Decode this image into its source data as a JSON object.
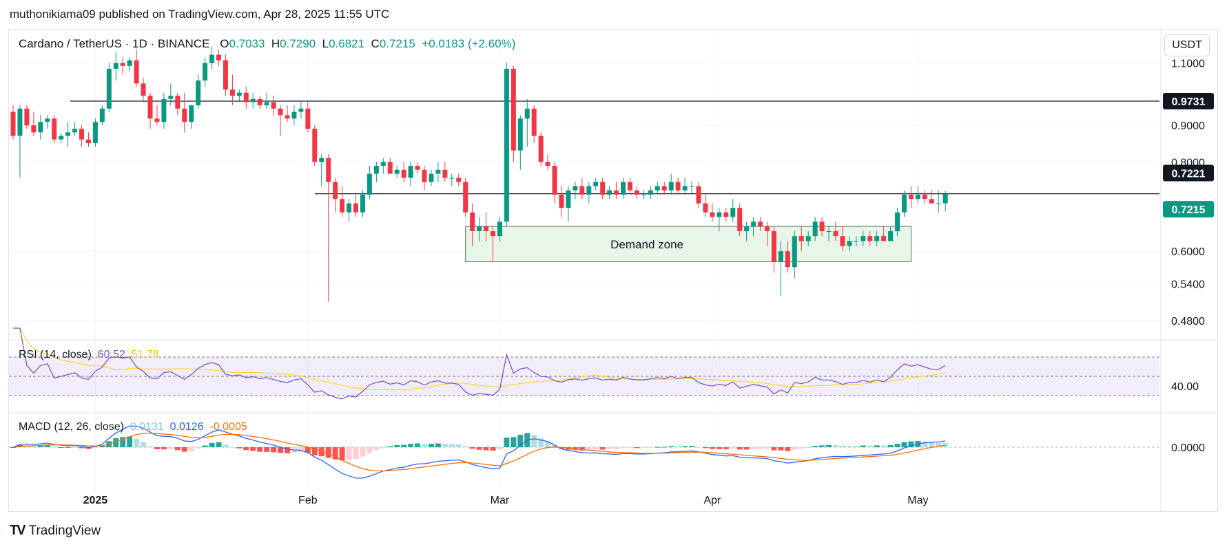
{
  "header": {
    "published_by": "muthonikiama09 published on TradingView.com, Apr 28, 2025 11:55 UTC"
  },
  "symbol": {
    "title": "Cardano / TetherUS · 1D · BINANCE",
    "o_label": "O",
    "o_value": "0.7033",
    "h_label": "H",
    "h_value": "0.7290",
    "l_label": "L",
    "l_value": "0.6821",
    "c_label": "C",
    "c_value": "0.7215",
    "change": "+0.0183 (+2.60%)"
  },
  "currency_button": "USDT",
  "price_labels": {
    "resistance": "0.9731",
    "support": "0.7221",
    "last": "0.7215"
  },
  "zone_label": "Demand zone",
  "rsi": {
    "title": "RSI (14, close)",
    "value": "60.52",
    "ma": "51.78",
    "tick": "40.00"
  },
  "macd": {
    "title": "MACD (12, 26, close)",
    "hist": "0.0131",
    "macd": "0.0126",
    "signal": "-0.0005",
    "tick": "0.0000"
  },
  "brand": "TradingView",
  "colors": {
    "up": "#089981",
    "down": "#f23645",
    "rsi": "#7e57c2",
    "rsi_ma": "#fdd835",
    "macd": "#2962ff",
    "signal": "#ff6d00",
    "zone_fill": "#e8f5e9"
  },
  "chart_data": {
    "type": "candlestick",
    "x_tick_labels": [
      "2025",
      "Feb",
      "Mar",
      "Apr",
      "May"
    ],
    "y_tick_labels": [
      "1.1000",
      "0.9000",
      "0.8000",
      "0.6000",
      "0.5400",
      "0.4800"
    ],
    "y_scale": "log",
    "horizontal_lines": [
      0.9731,
      0.7221
    ],
    "demand_zone": {
      "from": 0.58,
      "to": 0.65,
      "start": "2025-02-24",
      "end": "2025-04-30"
    },
    "start_date": "2024-12-20",
    "candles": [
      [
        0.94,
        0.96,
        0.86,
        0.87
      ],
      [
        0.87,
        0.96,
        0.76,
        0.95
      ],
      [
        0.95,
        0.96,
        0.89,
        0.9
      ],
      [
        0.9,
        0.94,
        0.87,
        0.88
      ],
      [
        0.88,
        0.93,
        0.86,
        0.91
      ],
      [
        0.91,
        0.93,
        0.89,
        0.92
      ],
      [
        0.92,
        0.93,
        0.85,
        0.86
      ],
      [
        0.86,
        0.88,
        0.85,
        0.87
      ],
      [
        0.87,
        0.91,
        0.84,
        0.88
      ],
      [
        0.88,
        0.91,
        0.87,
        0.89
      ],
      [
        0.89,
        0.9,
        0.84,
        0.86
      ],
      [
        0.86,
        0.88,
        0.84,
        0.85
      ],
      [
        0.85,
        0.92,
        0.84,
        0.91
      ],
      [
        0.91,
        0.96,
        0.9,
        0.95
      ],
      [
        0.95,
        1.1,
        0.94,
        1.08
      ],
      [
        1.08,
        1.14,
        1.04,
        1.1
      ],
      [
        1.1,
        1.12,
        1.06,
        1.09
      ],
      [
        1.09,
        1.12,
        1.07,
        1.11
      ],
      [
        1.11,
        1.15,
        1.02,
        1.03
      ],
      [
        1.03,
        1.05,
        0.97,
        0.99
      ],
      [
        0.99,
        1.0,
        0.89,
        0.92
      ],
      [
        0.92,
        0.96,
        0.9,
        0.91
      ],
      [
        0.91,
        1.0,
        0.89,
        0.98
      ],
      [
        0.98,
        1.03,
        0.96,
        0.99
      ],
      [
        0.99,
        1.0,
        0.93,
        0.95
      ],
      [
        0.95,
        1.0,
        0.88,
        0.91
      ],
      [
        0.91,
        0.96,
        0.89,
        0.96
      ],
      [
        0.96,
        1.06,
        0.95,
        1.04
      ],
      [
        1.04,
        1.12,
        1.02,
        1.1
      ],
      [
        1.1,
        1.16,
        1.08,
        1.13
      ],
      [
        1.13,
        1.15,
        1.09,
        1.11
      ],
      [
        1.11,
        1.13,
        0.99,
        1.01
      ],
      [
        1.01,
        1.06,
        0.96,
        0.99
      ],
      [
        0.99,
        1.01,
        0.97,
        1.0
      ],
      [
        1.0,
        1.02,
        0.95,
        0.97
      ],
      [
        0.97,
        1.0,
        0.95,
        0.98
      ],
      [
        0.98,
        0.99,
        0.95,
        0.96
      ],
      [
        0.96,
        1.0,
        0.95,
        0.97
      ],
      [
        0.97,
        0.99,
        0.93,
        0.95
      ],
      [
        0.95,
        0.96,
        0.87,
        0.93
      ],
      [
        0.93,
        0.96,
        0.91,
        0.92
      ],
      [
        0.92,
        0.96,
        0.9,
        0.94
      ],
      [
        0.94,
        0.97,
        0.92,
        0.95
      ],
      [
        0.95,
        0.97,
        0.88,
        0.89
      ],
      [
        0.89,
        0.9,
        0.79,
        0.8
      ],
      [
        0.8,
        0.82,
        0.74,
        0.81
      ],
      [
        0.81,
        0.82,
        0.51,
        0.75
      ],
      [
        0.75,
        0.76,
        0.68,
        0.71
      ],
      [
        0.71,
        0.74,
        0.67,
        0.68
      ],
      [
        0.68,
        0.71,
        0.66,
        0.7
      ],
      [
        0.7,
        0.72,
        0.67,
        0.68
      ],
      [
        0.68,
        0.73,
        0.67,
        0.72
      ],
      [
        0.72,
        0.79,
        0.71,
        0.77
      ],
      [
        0.77,
        0.8,
        0.75,
        0.79
      ],
      [
        0.79,
        0.81,
        0.77,
        0.8
      ],
      [
        0.8,
        0.81,
        0.77,
        0.77
      ],
      [
        0.77,
        0.79,
        0.76,
        0.78
      ],
      [
        0.78,
        0.8,
        0.75,
        0.76
      ],
      [
        0.76,
        0.8,
        0.74,
        0.79
      ],
      [
        0.79,
        0.8,
        0.77,
        0.78
      ],
      [
        0.78,
        0.79,
        0.73,
        0.75
      ],
      [
        0.75,
        0.78,
        0.74,
        0.77
      ],
      [
        0.77,
        0.8,
        0.75,
        0.78
      ],
      [
        0.78,
        0.8,
        0.75,
        0.76
      ],
      [
        0.76,
        0.77,
        0.74,
        0.76
      ],
      [
        0.76,
        0.77,
        0.74,
        0.75
      ],
      [
        0.75,
        0.76,
        0.67,
        0.68
      ],
      [
        0.68,
        0.7,
        0.61,
        0.64
      ],
      [
        0.64,
        0.67,
        0.62,
        0.65
      ],
      [
        0.65,
        0.68,
        0.62,
        0.64
      ],
      [
        0.64,
        0.65,
        0.58,
        0.63
      ],
      [
        0.63,
        0.67,
        0.62,
        0.66
      ],
      [
        0.66,
        1.1,
        0.65,
        1.08
      ],
      [
        1.08,
        1.09,
        0.8,
        0.83
      ],
      [
        0.83,
        0.93,
        0.78,
        0.92
      ],
      [
        0.92,
        0.98,
        0.84,
        0.95
      ],
      [
        0.95,
        0.96,
        0.85,
        0.87
      ],
      [
        0.87,
        0.88,
        0.79,
        0.8
      ],
      [
        0.8,
        0.82,
        0.78,
        0.79
      ],
      [
        0.79,
        0.8,
        0.7,
        0.72
      ],
      [
        0.72,
        0.74,
        0.67,
        0.69
      ],
      [
        0.69,
        0.74,
        0.66,
        0.73
      ],
      [
        0.73,
        0.75,
        0.71,
        0.74
      ],
      [
        0.74,
        0.76,
        0.71,
        0.72
      ],
      [
        0.72,
        0.75,
        0.7,
        0.74
      ],
      [
        0.74,
        0.76,
        0.73,
        0.75
      ],
      [
        0.75,
        0.76,
        0.71,
        0.72
      ],
      [
        0.72,
        0.74,
        0.71,
        0.73
      ],
      [
        0.73,
        0.75,
        0.71,
        0.72
      ],
      [
        0.72,
        0.76,
        0.71,
        0.75
      ],
      [
        0.75,
        0.76,
        0.72,
        0.73
      ],
      [
        0.73,
        0.74,
        0.71,
        0.72
      ],
      [
        0.72,
        0.73,
        0.71,
        0.72
      ],
      [
        0.72,
        0.74,
        0.71,
        0.73
      ],
      [
        0.73,
        0.75,
        0.72,
        0.74
      ],
      [
        0.74,
        0.75,
        0.72,
        0.73
      ],
      [
        0.73,
        0.77,
        0.72,
        0.75
      ],
      [
        0.75,
        0.76,
        0.72,
        0.73
      ],
      [
        0.73,
        0.76,
        0.72,
        0.74
      ],
      [
        0.74,
        0.75,
        0.72,
        0.74
      ],
      [
        0.74,
        0.75,
        0.69,
        0.7
      ],
      [
        0.7,
        0.72,
        0.67,
        0.68
      ],
      [
        0.68,
        0.7,
        0.66,
        0.67
      ],
      [
        0.67,
        0.69,
        0.64,
        0.68
      ],
      [
        0.68,
        0.69,
        0.66,
        0.67
      ],
      [
        0.67,
        0.71,
        0.66,
        0.69
      ],
      [
        0.69,
        0.7,
        0.63,
        0.64
      ],
      [
        0.64,
        0.66,
        0.62,
        0.65
      ],
      [
        0.65,
        0.67,
        0.63,
        0.66
      ],
      [
        0.66,
        0.67,
        0.64,
        0.65
      ],
      [
        0.65,
        0.66,
        0.61,
        0.64
      ],
      [
        0.64,
        0.65,
        0.56,
        0.58
      ],
      [
        0.58,
        0.62,
        0.52,
        0.6
      ],
      [
        0.6,
        0.62,
        0.56,
        0.57
      ],
      [
        0.57,
        0.64,
        0.55,
        0.63
      ],
      [
        0.63,
        0.65,
        0.6,
        0.62
      ],
      [
        0.62,
        0.64,
        0.61,
        0.63
      ],
      [
        0.63,
        0.67,
        0.62,
        0.66
      ],
      [
        0.66,
        0.67,
        0.63,
        0.64
      ],
      [
        0.64,
        0.65,
        0.62,
        0.64
      ],
      [
        0.64,
        0.66,
        0.62,
        0.63
      ],
      [
        0.63,
        0.65,
        0.6,
        0.61
      ],
      [
        0.61,
        0.63,
        0.6,
        0.62
      ],
      [
        0.62,
        0.63,
        0.61,
        0.62
      ],
      [
        0.62,
        0.64,
        0.61,
        0.63
      ],
      [
        0.63,
        0.64,
        0.61,
        0.62
      ],
      [
        0.62,
        0.64,
        0.61,
        0.63
      ],
      [
        0.63,
        0.65,
        0.62,
        0.62
      ],
      [
        0.62,
        0.65,
        0.62,
        0.64
      ],
      [
        0.64,
        0.69,
        0.63,
        0.68
      ],
      [
        0.68,
        0.73,
        0.67,
        0.72
      ],
      [
        0.72,
        0.74,
        0.69,
        0.71
      ],
      [
        0.71,
        0.74,
        0.7,
        0.72
      ],
      [
        0.72,
        0.73,
        0.7,
        0.71
      ],
      [
        0.71,
        0.73,
        0.7,
        0.7
      ],
      [
        0.7,
        0.73,
        0.68,
        0.7
      ],
      [
        0.7,
        0.729,
        0.682,
        0.7215
      ]
    ]
  }
}
